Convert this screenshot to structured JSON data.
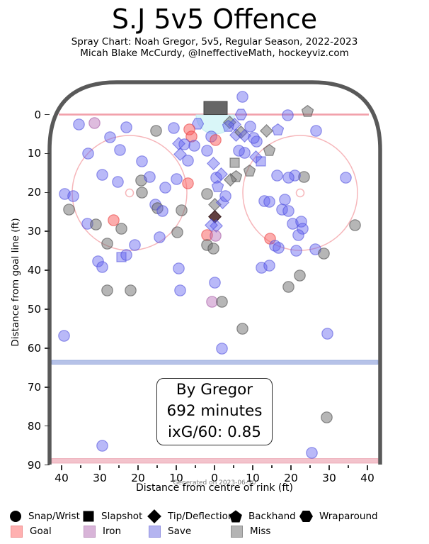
{
  "header": {
    "title": "S.J 5v5 Offence",
    "subtitle": "Spray Chart: Noah Gregor, 5v5, Regular Season, 2022-2023",
    "attribution": "Micah Blake McCurdy, @IneffectiveMath, hockeyviz.com"
  },
  "info_box": {
    "line1": "By Gregor",
    "line2": "692 minutes",
    "line3": "ixG/60: 0.85"
  },
  "axes": {
    "y_label": "Distance from goal line (ft)",
    "x_label": "Distance from centre of rink (ft)",
    "generated_note": "Generated on 2023-06-30",
    "y_ticks": [
      0,
      10,
      20,
      30,
      40,
      50,
      60,
      70,
      80,
      90
    ],
    "x_ticks": [
      40,
      30,
      20,
      10,
      0,
      10,
      20,
      30,
      40
    ]
  },
  "legend": {
    "shapes": [
      {
        "shape": "c",
        "label": "Snap/Wrist"
      },
      {
        "shape": "s",
        "label": "Slapshot"
      },
      {
        "shape": "d",
        "label": "Tip/Deflection"
      },
      {
        "shape": "p",
        "label": "Backhand"
      },
      {
        "shape": "h",
        "label": "Wraparound"
      }
    ],
    "results": [
      {
        "key": "goal",
        "label": "Goal",
        "fill": "#ffb0b0",
        "edge": "#ef8f8f"
      },
      {
        "key": "iron",
        "label": "Iron",
        "fill": "#d8b4d8",
        "edge": "#bf94bf"
      },
      {
        "key": "save",
        "label": "Save",
        "fill": "#b4b4f0",
        "edge": "#9191e0"
      },
      {
        "key": "miss",
        "label": "Miss",
        "fill": "#b4b4b4",
        "edge": "#8f8f8f"
      }
    ]
  },
  "colors": {
    "boards": "#595959",
    "goal_line": "#f2a0aa",
    "blue_line": "#b6c2e8",
    "red_line": "#f3c3cc",
    "faceoff": "#f6b6ba",
    "crease": "#d9f6f8",
    "net": "#666666",
    "save_fill": "#6464f0",
    "miss_fill": "#6e6e6e",
    "goal_fill": "#fa5a5a",
    "iron_fill": "#b66bb6",
    "dark_fill": "#4d2626"
  },
  "chart_data": {
    "type": "scatter",
    "title": "S.J 5v5 Offence",
    "x_axis": {
      "label": "Distance from centre of rink (ft)",
      "range": [
        -43,
        43
      ]
    },
    "y_axis": {
      "label": "Distance from goal line (ft)",
      "range": [
        -8,
        92
      ],
      "inverted": true
    },
    "shape_meaning": {
      "c": "Snap/Wrist",
      "s": "Slapshot",
      "d": "Tip/Deflection",
      "p": "Backhand",
      "h": "Wraparound"
    },
    "result_meaning": {
      "save": "Save",
      "miss": "Miss",
      "goal": "Goal",
      "iron": "Iron",
      "dark": "Tip/Deflection goal (dark)"
    },
    "shots": [
      {
        "s": "c",
        "r": "save",
        "x": 7.4,
        "y": -4.6
      },
      {
        "s": "p",
        "r": "miss",
        "x": 24.4,
        "y": -0.9
      },
      {
        "s": "c",
        "r": "save",
        "x": 19.1,
        "y": 0.2
      },
      {
        "s": "h",
        "r": "save",
        "x": 7.0,
        "y": 0.0
      },
      {
        "s": "c",
        "r": "save",
        "x": -35.4,
        "y": 2.6
      },
      {
        "s": "c",
        "r": "iron",
        "x": -31.3,
        "y": 2.2
      },
      {
        "s": "c",
        "r": "save",
        "x": -23.1,
        "y": 3.3
      },
      {
        "s": "c",
        "r": "miss",
        "x": -15.2,
        "y": 4.2
      },
      {
        "s": "c",
        "r": "save",
        "x": -10.7,
        "y": 3.5
      },
      {
        "s": "c",
        "r": "save",
        "x": -27.4,
        "y": 5.8
      },
      {
        "s": "h",
        "r": "save",
        "x": -4.3,
        "y": 2.4
      },
      {
        "s": "c",
        "r": "goal",
        "x": -6.5,
        "y": 3.8
      },
      {
        "s": "c",
        "r": "goal",
        "x": -6.1,
        "y": 5.6
      },
      {
        "s": "d",
        "r": "miss",
        "x": 3.9,
        "y": 2.0
      },
      {
        "s": "d",
        "r": "save",
        "x": 5.2,
        "y": 2.6
      },
      {
        "s": "p",
        "r": "save",
        "x": 3.7,
        "y": 2.9
      },
      {
        "s": "c",
        "r": "save",
        "x": 9.3,
        "y": 3.1
      },
      {
        "s": "p",
        "r": "save",
        "x": 16.5,
        "y": 3.8
      },
      {
        "s": "c",
        "r": "save",
        "x": -0.9,
        "y": 5.6
      },
      {
        "s": "d",
        "r": "save",
        "x": 5.6,
        "y": 5.3
      },
      {
        "s": "d",
        "r": "miss",
        "x": 6.9,
        "y": 4.6
      },
      {
        "s": "d",
        "r": "save",
        "x": 7.8,
        "y": 5.5
      },
      {
        "s": "c",
        "r": "goal",
        "x": 0.2,
        "y": 6.6
      },
      {
        "s": "c",
        "r": "save",
        "x": -5.2,
        "y": 8.0
      },
      {
        "s": "c",
        "r": "save",
        "x": -7.8,
        "y": 7.7
      },
      {
        "s": "c",
        "r": "save",
        "x": 11.1,
        "y": 6.9
      },
      {
        "s": "c",
        "r": "save",
        "x": 10.2,
        "y": 6.0
      },
      {
        "s": "d",
        "r": "save",
        "x": -9.3,
        "y": 7.5
      },
      {
        "s": "d",
        "r": "save",
        "x": -8.9,
        "y": 10.2
      },
      {
        "s": "c",
        "r": "save",
        "x": -33.1,
        "y": 10.0
      },
      {
        "s": "c",
        "r": "save",
        "x": -24.8,
        "y": 9.1
      },
      {
        "s": "c",
        "r": "save",
        "x": -18.9,
        "y": 12.0
      },
      {
        "s": "c",
        "r": "save",
        "x": -6.9,
        "y": 11.8
      },
      {
        "s": "d",
        "r": "save",
        "x": 10.9,
        "y": 10.9
      },
      {
        "s": "s",
        "r": "save",
        "x": 12.2,
        "y": 12.0
      },
      {
        "s": "d",
        "r": "miss",
        "x": 13.7,
        "y": 4.2
      },
      {
        "s": "p",
        "r": "miss",
        "x": 14.4,
        "y": 9.1
      },
      {
        "s": "c",
        "r": "save",
        "x": 7.8,
        "y": 9.8
      },
      {
        "s": "c",
        "r": "save",
        "x": 6.3,
        "y": 9.3
      },
      {
        "s": "p",
        "r": "miss",
        "x": 9.1,
        "y": 14.4
      },
      {
        "s": "p",
        "r": "miss",
        "x": 5.7,
        "y": 15.8
      },
      {
        "s": "s",
        "r": "miss",
        "x": 5.2,
        "y": 12.4
      },
      {
        "s": "d",
        "r": "save",
        "x": -0.2,
        "y": 12.6
      },
      {
        "s": "c",
        "r": "save",
        "x": -1.9,
        "y": 9.3
      },
      {
        "s": "c",
        "r": "save",
        "x": 0.4,
        "y": 16.2
      },
      {
        "s": "d",
        "r": "save",
        "x": 1.7,
        "y": 15.3
      },
      {
        "s": "d",
        "r": "miss",
        "x": 4.1,
        "y": 16.8
      },
      {
        "s": "p",
        "r": "save",
        "x": 0.9,
        "y": 18.4
      },
      {
        "s": "c",
        "r": "goal",
        "x": -6.9,
        "y": 17.7
      },
      {
        "s": "c",
        "r": "save",
        "x": -10.0,
        "y": 16.6
      },
      {
        "s": "c",
        "r": "miss",
        "x": -2.0,
        "y": 20.4
      },
      {
        "s": "d",
        "r": "miss",
        "x": 0.0,
        "y": 23.1
      },
      {
        "s": "d",
        "r": "save",
        "x": 2.2,
        "y": 22.6
      },
      {
        "s": "c",
        "r": "save",
        "x": 2.8,
        "y": 20.9
      },
      {
        "s": "d",
        "r": "dark",
        "x": 0.0,
        "y": 26.2
      },
      {
        "s": "d",
        "r": "save",
        "x": 0.4,
        "y": 28.6
      },
      {
        "s": "d",
        "r": "save",
        "x": -0.9,
        "y": 28.4
      },
      {
        "s": "c",
        "r": "goal",
        "x": -1.9,
        "y": 31.0
      },
      {
        "s": "c",
        "r": "iron",
        "x": 0.2,
        "y": 31.1
      },
      {
        "s": "c",
        "r": "miss",
        "x": -1.9,
        "y": 33.5
      },
      {
        "s": "c",
        "r": "miss",
        "x": -0.2,
        "y": 34.4
      },
      {
        "s": "c",
        "r": "miss",
        "x": -8.7,
        "y": 24.6
      },
      {
        "s": "c",
        "r": "miss",
        "x": -9.8,
        "y": 30.2
      },
      {
        "s": "c",
        "r": "save",
        "x": -39.1,
        "y": 20.4
      },
      {
        "s": "c",
        "r": "save",
        "x": -37.0,
        "y": 20.9
      },
      {
        "s": "c",
        "r": "miss",
        "x": -38.1,
        "y": 24.4
      },
      {
        "s": "c",
        "r": "save",
        "x": -12.8,
        "y": 18.8
      },
      {
        "s": "c",
        "r": "save",
        "x": -29.3,
        "y": 15.5
      },
      {
        "s": "c",
        "r": "save",
        "x": -25.2,
        "y": 17.3
      },
      {
        "s": "c",
        "r": "miss",
        "x": -19.1,
        "y": 16.9
      },
      {
        "s": "c",
        "r": "save",
        "x": -17.0,
        "y": 16.0
      },
      {
        "s": "c",
        "r": "miss",
        "x": -18.9,
        "y": 20.0
      },
      {
        "s": "c",
        "r": "save",
        "x": -15.4,
        "y": 23.1
      },
      {
        "s": "c",
        "r": "miss",
        "x": -15.0,
        "y": 24.0
      },
      {
        "s": "c",
        "r": "save",
        "x": -13.7,
        "y": 24.8
      },
      {
        "s": "c",
        "r": "save",
        "x": -33.3,
        "y": 28.1
      },
      {
        "s": "c",
        "r": "miss",
        "x": -31.1,
        "y": 28.2
      },
      {
        "s": "c",
        "r": "goal",
        "x": -26.3,
        "y": 27.1
      },
      {
        "s": "c",
        "r": "miss",
        "x": -24.3,
        "y": 29.3
      },
      {
        "s": "c",
        "r": "miss",
        "x": -28.1,
        "y": 33.2
      },
      {
        "s": "c",
        "r": "save",
        "x": -20.9,
        "y": 33.5
      },
      {
        "s": "c",
        "r": "save",
        "x": -14.3,
        "y": 31.5
      },
      {
        "s": "s",
        "r": "save",
        "x": -24.3,
        "y": 36.6
      },
      {
        "s": "c",
        "r": "save",
        "x": -23.0,
        "y": 36.1
      },
      {
        "s": "c",
        "r": "save",
        "x": -30.4,
        "y": 37.7
      },
      {
        "s": "c",
        "r": "save",
        "x": -29.3,
        "y": 39.2
      },
      {
        "s": "c",
        "r": "save",
        "x": -9.3,
        "y": 39.5
      },
      {
        "s": "c",
        "r": "miss",
        "x": -28.1,
        "y": 45.2
      },
      {
        "s": "c",
        "r": "miss",
        "x": -22.0,
        "y": 45.2
      },
      {
        "s": "c",
        "r": "save",
        "x": -8.9,
        "y": 45.2
      },
      {
        "s": "c",
        "r": "save",
        "x": -39.3,
        "y": 56.9
      },
      {
        "s": "c",
        "r": "save",
        "x": 0.0,
        "y": 43.2
      },
      {
        "s": "c",
        "r": "iron",
        "x": -0.7,
        "y": 48.1
      },
      {
        "s": "c",
        "r": "miss",
        "x": 2.0,
        "y": 48.1
      },
      {
        "s": "c",
        "r": "miss",
        "x": 7.4,
        "y": 55.1
      },
      {
        "s": "c",
        "r": "save",
        "x": 1.9,
        "y": 60.2
      },
      {
        "s": "c",
        "r": "save",
        "x": 12.4,
        "y": 39.3
      },
      {
        "s": "c",
        "r": "save",
        "x": 14.3,
        "y": 38.8
      },
      {
        "s": "c",
        "r": "miss",
        "x": 22.4,
        "y": 41.3
      },
      {
        "s": "c",
        "r": "miss",
        "x": 19.4,
        "y": 44.3
      },
      {
        "s": "c",
        "r": "save",
        "x": 29.6,
        "y": 56.3
      },
      {
        "s": "c",
        "r": "miss",
        "x": 29.4,
        "y": 77.8
      },
      {
        "s": "c",
        "r": "save",
        "x": -29.3,
        "y": 85.0
      },
      {
        "s": "c",
        "r": "save",
        "x": 25.4,
        "y": 86.9
      },
      {
        "s": "c",
        "r": "save",
        "x": 26.5,
        "y": 4.2
      },
      {
        "s": "c",
        "r": "save",
        "x": 34.4,
        "y": 16.2
      },
      {
        "s": "c",
        "r": "miss",
        "x": 23.5,
        "y": 16.0
      },
      {
        "s": "c",
        "r": "save",
        "x": 21.1,
        "y": 15.7
      },
      {
        "s": "c",
        "r": "save",
        "x": 19.3,
        "y": 16.2
      },
      {
        "s": "c",
        "r": "save",
        "x": 16.3,
        "y": 15.7
      },
      {
        "s": "c",
        "r": "save",
        "x": 13.0,
        "y": 22.2
      },
      {
        "s": "c",
        "r": "save",
        "x": 14.4,
        "y": 22.4
      },
      {
        "s": "c",
        "r": "save",
        "x": 18.5,
        "y": 21.9
      },
      {
        "s": "c",
        "r": "save",
        "x": 17.6,
        "y": 24.4
      },
      {
        "s": "c",
        "r": "save",
        "x": 19.4,
        "y": 24.8
      },
      {
        "s": "c",
        "r": "save",
        "x": 20.4,
        "y": 28.1
      },
      {
        "s": "c",
        "r": "save",
        "x": 22.6,
        "y": 27.5
      },
      {
        "s": "c",
        "r": "save",
        "x": 23.0,
        "y": 29.3
      },
      {
        "s": "c",
        "r": "save",
        "x": 22.0,
        "y": 31.0
      },
      {
        "s": "c",
        "r": "miss",
        "x": 36.7,
        "y": 28.4
      },
      {
        "s": "c",
        "r": "save",
        "x": 21.3,
        "y": 35.0
      },
      {
        "s": "c",
        "r": "save",
        "x": 26.3,
        "y": 34.6
      },
      {
        "s": "c",
        "r": "miss",
        "x": 28.7,
        "y": 35.7
      },
      {
        "s": "c",
        "r": "goal",
        "x": 14.6,
        "y": 31.9
      },
      {
        "s": "c",
        "r": "save",
        "x": 15.9,
        "y": 33.7
      },
      {
        "s": "c",
        "r": "save",
        "x": 16.7,
        "y": 34.2
      }
    ]
  }
}
